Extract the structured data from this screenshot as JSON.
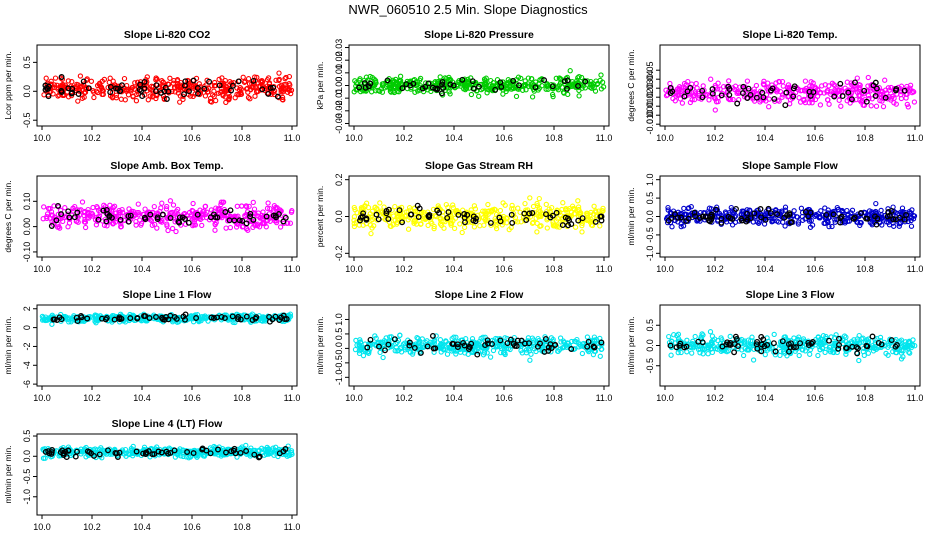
{
  "page_title": "NWR_060510  2.5 Min. Slope Diagnostics",
  "chart_data": [
    {
      "type": "scatter",
      "title": "Slope Li-820 CO2",
      "ylabel": "Lcor ppm per min.",
      "xlim": [
        9.98,
        11.02
      ],
      "ylim": [
        -0.6,
        0.8
      ],
      "xticks": [
        10.0,
        10.2,
        10.4,
        10.6,
        10.8,
        11.0
      ],
      "yticks": [
        -0.5,
        0.0,
        0.5
      ],
      "ytick_labels": [
        "-0.5",
        "0.0",
        "0.5"
      ],
      "color": "#ff0000",
      "center": 0.05,
      "spread": 0.25,
      "n": 420,
      "black_n": 55,
      "seed": 1
    },
    {
      "type": "scatter",
      "title": "Slope Li-820 Pressure",
      "ylabel": "kPa per min.",
      "xlim": [
        9.98,
        11.02
      ],
      "ylim": [
        -0.032,
        0.032
      ],
      "xticks": [
        10.0,
        10.2,
        10.4,
        10.6,
        10.8,
        11.0
      ],
      "yticks": [
        -0.03,
        -0.02,
        -0.01,
        0.0,
        0.01,
        0.02,
        0.03
      ],
      "ytick_labels": [
        "-0.03",
        "-0.02",
        "-0.01",
        "0.00",
        "0.01",
        "0.02",
        "0.03"
      ],
      "color": "#00cc00",
      "center": 0.0,
      "spread": 0.008,
      "n": 420,
      "black_n": 40,
      "seed": 2
    },
    {
      "type": "scatter",
      "title": "Slope Li-820 Temp.",
      "ylabel": "degrees C per min.",
      "xlim": [
        9.98,
        11.02
      ],
      "ylim": [
        -0.012,
        0.078
      ],
      "xticks": [
        10.0,
        10.2,
        10.4,
        10.6,
        10.8,
        11.0
      ],
      "yticks": [
        -0.01,
        0.0,
        0.01,
        0.02,
        0.03,
        0.04,
        0.05
      ],
      "ytick_labels": [
        "-0.01",
        "0.00",
        "0.01",
        "0.02",
        "0.03",
        "0.04",
        "0.05"
      ],
      "color": "#ff00ff",
      "center": 0.025,
      "spread": 0.018,
      "n": 380,
      "black_n": 50,
      "seed": 3
    },
    {
      "type": "scatter",
      "title": "Slope Amb. Box Temp.",
      "ylabel": "degrees C per min.",
      "xlim": [
        9.98,
        11.02
      ],
      "ylim": [
        -0.12,
        0.2
      ],
      "xticks": [
        10.0,
        10.2,
        10.4,
        10.6,
        10.8,
        11.0
      ],
      "yticks": [
        -0.1,
        0.0,
        0.1
      ],
      "ytick_labels": [
        "-0.10",
        "0.00",
        "0.10"
      ],
      "color": "#ff00ff",
      "center": 0.04,
      "spread": 0.06,
      "n": 420,
      "black_n": 55,
      "seed": 4
    },
    {
      "type": "scatter",
      "title": "Slope Gas Stream RH",
      "ylabel": "percent per min.",
      "xlim": [
        9.98,
        11.02
      ],
      "ylim": [
        -0.22,
        0.22
      ],
      "xticks": [
        10.0,
        10.2,
        10.4,
        10.6,
        10.8,
        11.0
      ],
      "yticks": [
        -0.2,
        0.0,
        0.2
      ],
      "ytick_labels": [
        "-0.2",
        "0.0",
        "0.2"
      ],
      "color": "#ffff00",
      "center": 0.0,
      "spread": 0.08,
      "n": 420,
      "black_n": 60,
      "seed": 5
    },
    {
      "type": "scatter",
      "title": "Slope Sample Flow",
      "ylabel": "ml/min per min.",
      "xlim": [
        9.98,
        11.02
      ],
      "ylim": [
        -1.1,
        1.1
      ],
      "xticks": [
        10.0,
        10.2,
        10.4,
        10.6,
        10.8,
        11.0
      ],
      "yticks": [
        -1.0,
        -0.5,
        0.0,
        0.5,
        1.0
      ],
      "ytick_labels": [
        "-1.0",
        "-0.5",
        "0.0",
        "0.5",
        "1.0"
      ],
      "color": "#0000cc",
      "center": 0.0,
      "spread": 0.3,
      "n": 420,
      "black_n": 70,
      "seed": 6
    },
    {
      "type": "scatter",
      "title": "Slope Line 1 Flow",
      "ylabel": "ml/min per min.",
      "xlim": [
        9.98,
        11.02
      ],
      "ylim": [
        -6.2,
        2.4
      ],
      "xticks": [
        10.0,
        10.2,
        10.4,
        10.6,
        10.8,
        11.0
      ],
      "yticks": [
        -6,
        -4,
        -2,
        0,
        2
      ],
      "ytick_labels": [
        "-6",
        "-4",
        "-2",
        "0",
        "2"
      ],
      "color": "#00e5ee",
      "center": 1.0,
      "spread": 0.5,
      "n": 420,
      "black_n": 60,
      "seed": 7
    },
    {
      "type": "scatter",
      "title": "Slope Line 2 Flow",
      "ylabel": "ml/min per min.",
      "xlim": [
        9.98,
        11.02
      ],
      "ylim": [
        -1.3,
        1.5
      ],
      "xticks": [
        10.0,
        10.2,
        10.4,
        10.6,
        10.8,
        11.0
      ],
      "yticks": [
        -1.0,
        -0.5,
        0.0,
        0.5,
        1.0
      ],
      "ytick_labels": [
        "-1.0",
        "-0.5",
        "0.0",
        "0.5",
        "1.0"
      ],
      "color": "#00e5ee",
      "center": 0.1,
      "spread": 0.4,
      "n": 420,
      "black_n": 55,
      "seed": 8
    },
    {
      "type": "scatter",
      "title": "Slope Line 3 Flow",
      "ylabel": "ml/min per min.",
      "xlim": [
        9.98,
        11.02
      ],
      "ylim": [
        -1.0,
        1.0
      ],
      "xticks": [
        10.0,
        10.2,
        10.4,
        10.6,
        10.8,
        11.0
      ],
      "yticks": [
        -0.5,
        0.0,
        0.5
      ],
      "ytick_labels": [
        "-0.5",
        "0.0",
        "0.5"
      ],
      "color": "#00e5ee",
      "center": 0.0,
      "spread": 0.3,
      "n": 420,
      "black_n": 60,
      "seed": 9
    },
    {
      "type": "scatter",
      "title": "Slope Line 4 (LT) Flow",
      "ylabel": "ml/min per min.",
      "xlim": [
        9.98,
        11.02
      ],
      "ylim": [
        -1.45,
        0.55
      ],
      "xticks": [
        10.0,
        10.2,
        10.4,
        10.6,
        10.8,
        11.0
      ],
      "yticks": [
        -1.0,
        -0.5,
        0.0,
        0.5
      ],
      "ytick_labels": [
        "-1.0",
        "-0.5",
        "0.0",
        "0.5"
      ],
      "color": "#00e5ee",
      "center": 0.1,
      "spread": 0.15,
      "n": 420,
      "black_n": 60,
      "seed": 10
    }
  ]
}
